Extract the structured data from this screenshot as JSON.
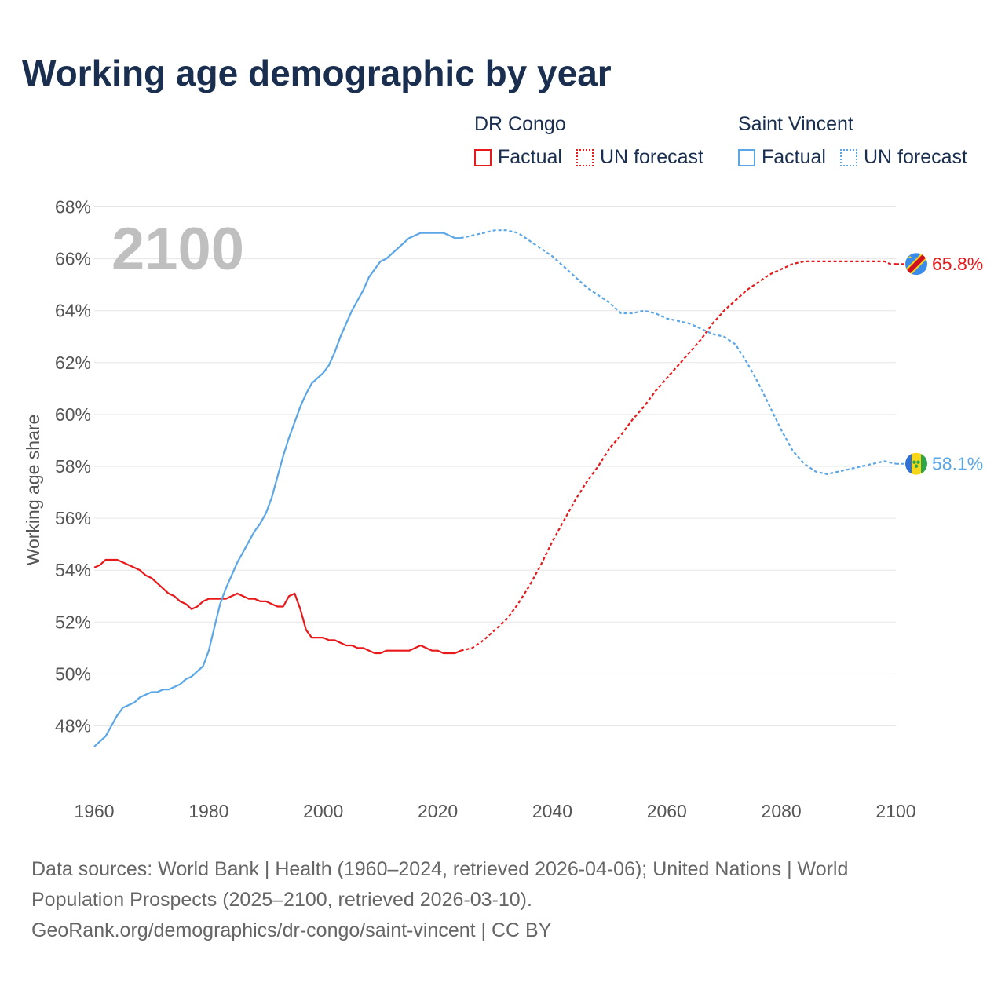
{
  "chart_data": {
    "type": "line",
    "title": "Working age demographic by year",
    "ylabel": "Working age share",
    "xlabel": "",
    "year_label": "2100",
    "xlim": [
      1960,
      2100
    ],
    "ylim": [
      46,
      68
    ],
    "x_ticks": [
      1960,
      1980,
      2000,
      2020,
      2040,
      2060,
      2080,
      2100
    ],
    "y_ticks": [
      48,
      50,
      52,
      54,
      56,
      58,
      60,
      62,
      64,
      66,
      68
    ],
    "y_tick_labels": [
      "48%",
      "50%",
      "52%",
      "54%",
      "56%",
      "58%",
      "60%",
      "62%",
      "64%",
      "66%",
      "68%"
    ],
    "legend_groups": [
      {
        "name": "DR Congo",
        "color": "#e8191b",
        "factual_label": "Factual",
        "forecast_label": "UN forecast"
      },
      {
        "name": "Saint Vincent",
        "color": "#5ba6e6",
        "factual_label": "Factual",
        "forecast_label": "UN forecast"
      }
    ],
    "series": [
      {
        "name": "DR Congo",
        "color": "#e8191b",
        "end_label": "65.8%",
        "factual": [
          [
            1960,
            54.1
          ],
          [
            1961,
            54.2
          ],
          [
            1962,
            54.4
          ],
          [
            1963,
            54.4
          ],
          [
            1964,
            54.4
          ],
          [
            1965,
            54.3
          ],
          [
            1966,
            54.2
          ],
          [
            1967,
            54.1
          ],
          [
            1968,
            54.0
          ],
          [
            1969,
            53.8
          ],
          [
            1970,
            53.7
          ],
          [
            1971,
            53.5
          ],
          [
            1972,
            53.3
          ],
          [
            1973,
            53.1
          ],
          [
            1974,
            53.0
          ],
          [
            1975,
            52.8
          ],
          [
            1976,
            52.7
          ],
          [
            1977,
            52.5
          ],
          [
            1978,
            52.6
          ],
          [
            1979,
            52.8
          ],
          [
            1980,
            52.9
          ],
          [
            1981,
            52.9
          ],
          [
            1982,
            52.9
          ],
          [
            1983,
            52.9
          ],
          [
            1984,
            53.0
          ],
          [
            1985,
            53.1
          ],
          [
            1986,
            53.0
          ],
          [
            1987,
            52.9
          ],
          [
            1988,
            52.9
          ],
          [
            1989,
            52.8
          ],
          [
            1990,
            52.8
          ],
          [
            1991,
            52.7
          ],
          [
            1992,
            52.6
          ],
          [
            1993,
            52.6
          ],
          [
            1994,
            53.0
          ],
          [
            1995,
            53.1
          ],
          [
            1996,
            52.5
          ],
          [
            1997,
            51.7
          ],
          [
            1998,
            51.4
          ],
          [
            1999,
            51.4
          ],
          [
            2000,
            51.4
          ],
          [
            2001,
            51.3
          ],
          [
            2002,
            51.3
          ],
          [
            2003,
            51.2
          ],
          [
            2004,
            51.1
          ],
          [
            2005,
            51.1
          ],
          [
            2006,
            51.0
          ],
          [
            2007,
            51.0
          ],
          [
            2008,
            50.9
          ],
          [
            2009,
            50.8
          ],
          [
            2010,
            50.8
          ],
          [
            2011,
            50.9
          ],
          [
            2012,
            50.9
          ],
          [
            2013,
            50.9
          ],
          [
            2014,
            50.9
          ],
          [
            2015,
            50.9
          ],
          [
            2016,
            51.0
          ],
          [
            2017,
            51.1
          ],
          [
            2018,
            51.0
          ],
          [
            2019,
            50.9
          ],
          [
            2020,
            50.9
          ],
          [
            2021,
            50.8
          ],
          [
            2022,
            50.8
          ],
          [
            2023,
            50.8
          ],
          [
            2024,
            50.9
          ]
        ],
        "forecast": [
          [
            2024,
            50.9
          ],
          [
            2026,
            51.0
          ],
          [
            2028,
            51.3
          ],
          [
            2030,
            51.7
          ],
          [
            2032,
            52.1
          ],
          [
            2034,
            52.7
          ],
          [
            2036,
            53.4
          ],
          [
            2038,
            54.2
          ],
          [
            2040,
            55.1
          ],
          [
            2042,
            55.9
          ],
          [
            2044,
            56.7
          ],
          [
            2046,
            57.4
          ],
          [
            2048,
            58.0
          ],
          [
            2050,
            58.7
          ],
          [
            2052,
            59.2
          ],
          [
            2054,
            59.8
          ],
          [
            2056,
            60.3
          ],
          [
            2058,
            60.9
          ],
          [
            2060,
            61.4
          ],
          [
            2062,
            61.9
          ],
          [
            2064,
            62.4
          ],
          [
            2066,
            62.9
          ],
          [
            2068,
            63.5
          ],
          [
            2070,
            64.0
          ],
          [
            2072,
            64.4
          ],
          [
            2074,
            64.8
          ],
          [
            2076,
            65.1
          ],
          [
            2078,
            65.4
          ],
          [
            2080,
            65.6
          ],
          [
            2082,
            65.8
          ],
          [
            2084,
            65.9
          ],
          [
            2086,
            65.9
          ],
          [
            2088,
            65.9
          ],
          [
            2090,
            65.9
          ],
          [
            2092,
            65.9
          ],
          [
            2094,
            65.9
          ],
          [
            2096,
            65.9
          ],
          [
            2098,
            65.9
          ],
          [
            2099,
            65.8
          ],
          [
            2100,
            65.8
          ]
        ]
      },
      {
        "name": "Saint Vincent",
        "color": "#5ba6e6",
        "end_label": "58.1%",
        "factual": [
          [
            1960,
            47.2
          ],
          [
            1961,
            47.4
          ],
          [
            1962,
            47.6
          ],
          [
            1963,
            48.0
          ],
          [
            1964,
            48.4
          ],
          [
            1965,
            48.7
          ],
          [
            1966,
            48.8
          ],
          [
            1967,
            48.9
          ],
          [
            1968,
            49.1
          ],
          [
            1969,
            49.2
          ],
          [
            1970,
            49.3
          ],
          [
            1971,
            49.3
          ],
          [
            1972,
            49.4
          ],
          [
            1973,
            49.4
          ],
          [
            1974,
            49.5
          ],
          [
            1975,
            49.6
          ],
          [
            1976,
            49.8
          ],
          [
            1977,
            49.9
          ],
          [
            1978,
            50.1
          ],
          [
            1979,
            50.3
          ],
          [
            1980,
            50.9
          ],
          [
            1981,
            51.8
          ],
          [
            1982,
            52.7
          ],
          [
            1983,
            53.3
          ],
          [
            1984,
            53.8
          ],
          [
            1985,
            54.3
          ],
          [
            1986,
            54.7
          ],
          [
            1987,
            55.1
          ],
          [
            1988,
            55.5
          ],
          [
            1989,
            55.8
          ],
          [
            1990,
            56.2
          ],
          [
            1991,
            56.8
          ],
          [
            1992,
            57.6
          ],
          [
            1993,
            58.4
          ],
          [
            1994,
            59.1
          ],
          [
            1995,
            59.7
          ],
          [
            1996,
            60.3
          ],
          [
            1997,
            60.8
          ],
          [
            1998,
            61.2
          ],
          [
            1999,
            61.4
          ],
          [
            2000,
            61.6
          ],
          [
            2001,
            61.9
          ],
          [
            2002,
            62.4
          ],
          [
            2003,
            63.0
          ],
          [
            2004,
            63.5
          ],
          [
            2005,
            64.0
          ],
          [
            2006,
            64.4
          ],
          [
            2007,
            64.8
          ],
          [
            2008,
            65.3
          ],
          [
            2009,
            65.6
          ],
          [
            2010,
            65.9
          ],
          [
            2011,
            66.0
          ],
          [
            2012,
            66.2
          ],
          [
            2013,
            66.4
          ],
          [
            2014,
            66.6
          ],
          [
            2015,
            66.8
          ],
          [
            2016,
            66.9
          ],
          [
            2017,
            67.0
          ],
          [
            2018,
            67.0
          ],
          [
            2019,
            67.0
          ],
          [
            2020,
            67.0
          ],
          [
            2021,
            67.0
          ],
          [
            2022,
            66.9
          ],
          [
            2023,
            66.8
          ],
          [
            2024,
            66.8
          ]
        ],
        "forecast": [
          [
            2024,
            66.8
          ],
          [
            2026,
            66.9
          ],
          [
            2028,
            67.0
          ],
          [
            2030,
            67.1
          ],
          [
            2032,
            67.1
          ],
          [
            2034,
            67.0
          ],
          [
            2036,
            66.7
          ],
          [
            2038,
            66.4
          ],
          [
            2040,
            66.1
          ],
          [
            2042,
            65.7
          ],
          [
            2044,
            65.3
          ],
          [
            2046,
            64.9
          ],
          [
            2048,
            64.6
          ],
          [
            2050,
            64.3
          ],
          [
            2052,
            63.9
          ],
          [
            2054,
            63.9
          ],
          [
            2056,
            64.0
          ],
          [
            2058,
            63.9
          ],
          [
            2060,
            63.7
          ],
          [
            2062,
            63.6
          ],
          [
            2064,
            63.5
          ],
          [
            2066,
            63.3
          ],
          [
            2068,
            63.1
          ],
          [
            2070,
            63.0
          ],
          [
            2072,
            62.7
          ],
          [
            2074,
            62.0
          ],
          [
            2076,
            61.2
          ],
          [
            2078,
            60.3
          ],
          [
            2080,
            59.4
          ],
          [
            2082,
            58.6
          ],
          [
            2084,
            58.1
          ],
          [
            2086,
            57.8
          ],
          [
            2088,
            57.7
          ],
          [
            2090,
            57.8
          ],
          [
            2092,
            57.9
          ],
          [
            2094,
            58.0
          ],
          [
            2096,
            58.1
          ],
          [
            2098,
            58.2
          ],
          [
            2100,
            58.1
          ]
        ]
      }
    ]
  },
  "footer": {
    "line1": "Data sources: World Bank | Health (1960–2024, retrieved 2026-04-06); United Nations | World",
    "line2": "Population Prospects (2025–2100, retrieved 2026-03-10).",
    "line3": "GeoRank.org/demographics/dr-congo/saint-vincent | CC BY"
  }
}
